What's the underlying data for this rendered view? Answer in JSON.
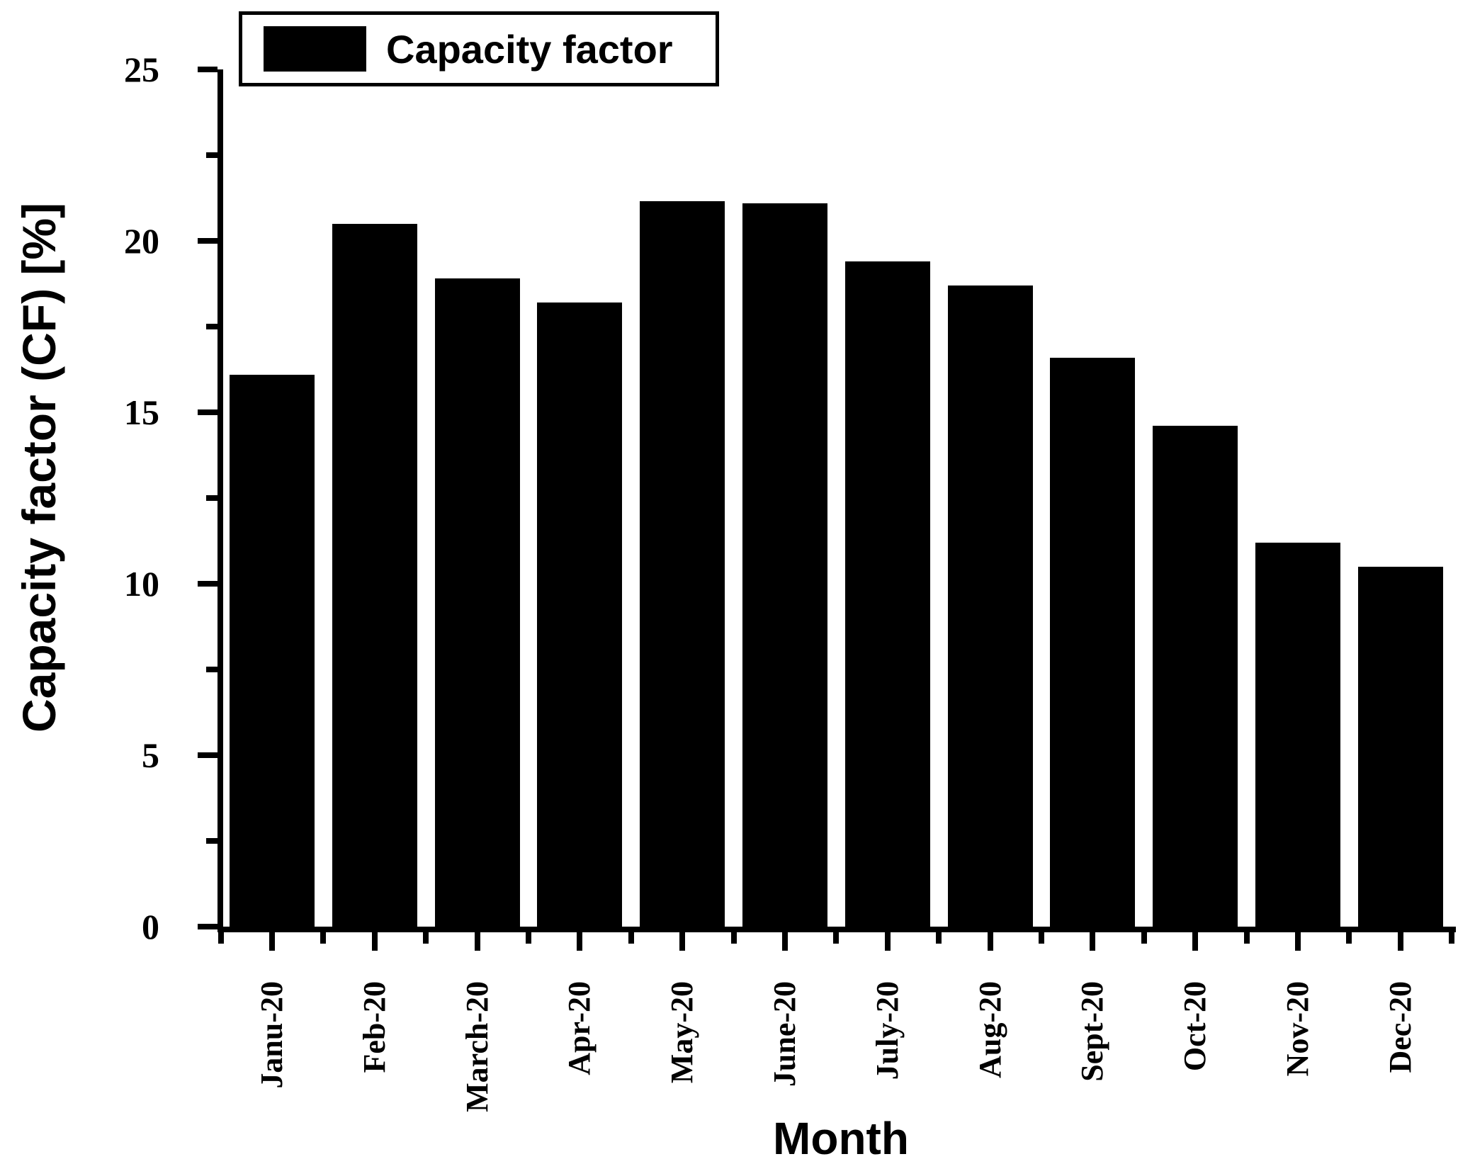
{
  "colors": {
    "ink": "#000000",
    "background": "#ffffff"
  },
  "legend": {
    "label": "Capacity factor",
    "swatch_color": "#000000",
    "position": "top-left"
  },
  "y_axis": {
    "title": "Capacity factor (CF) [%]",
    "tick_labels": [
      "0",
      "5",
      "10",
      "15",
      "20",
      "25"
    ],
    "major_ticks": [
      0,
      5,
      10,
      15,
      20,
      25
    ],
    "minor_ticks": [
      2.5,
      7.5,
      12.5,
      17.5,
      22.5
    ]
  },
  "x_axis": {
    "title": "Month"
  },
  "chart_data": {
    "type": "bar",
    "title": "",
    "categories": [
      "Janu-20",
      "Feb-20",
      "March-20",
      "Apr-20",
      "May-20",
      "June-20",
      "July-20",
      "Aug-20",
      "Sept-20",
      "Oct-20",
      "Nov-20",
      "Dec-20"
    ],
    "values": [
      16.1,
      20.5,
      18.9,
      18.2,
      21.15,
      21.1,
      19.4,
      18.7,
      16.6,
      14.6,
      11.2,
      10.5
    ],
    "series": [
      {
        "name": "Capacity factor",
        "values": [
          16.1,
          20.5,
          18.9,
          18.2,
          21.15,
          21.1,
          19.4,
          18.7,
          16.6,
          14.6,
          11.2,
          10.5
        ]
      }
    ],
    "xlabel": "Month",
    "ylabel": "Capacity factor (CF) [%]",
    "ylim": [
      0,
      25
    ],
    "bar_color": "#000000",
    "grid": false,
    "legend_position": "top-left"
  }
}
